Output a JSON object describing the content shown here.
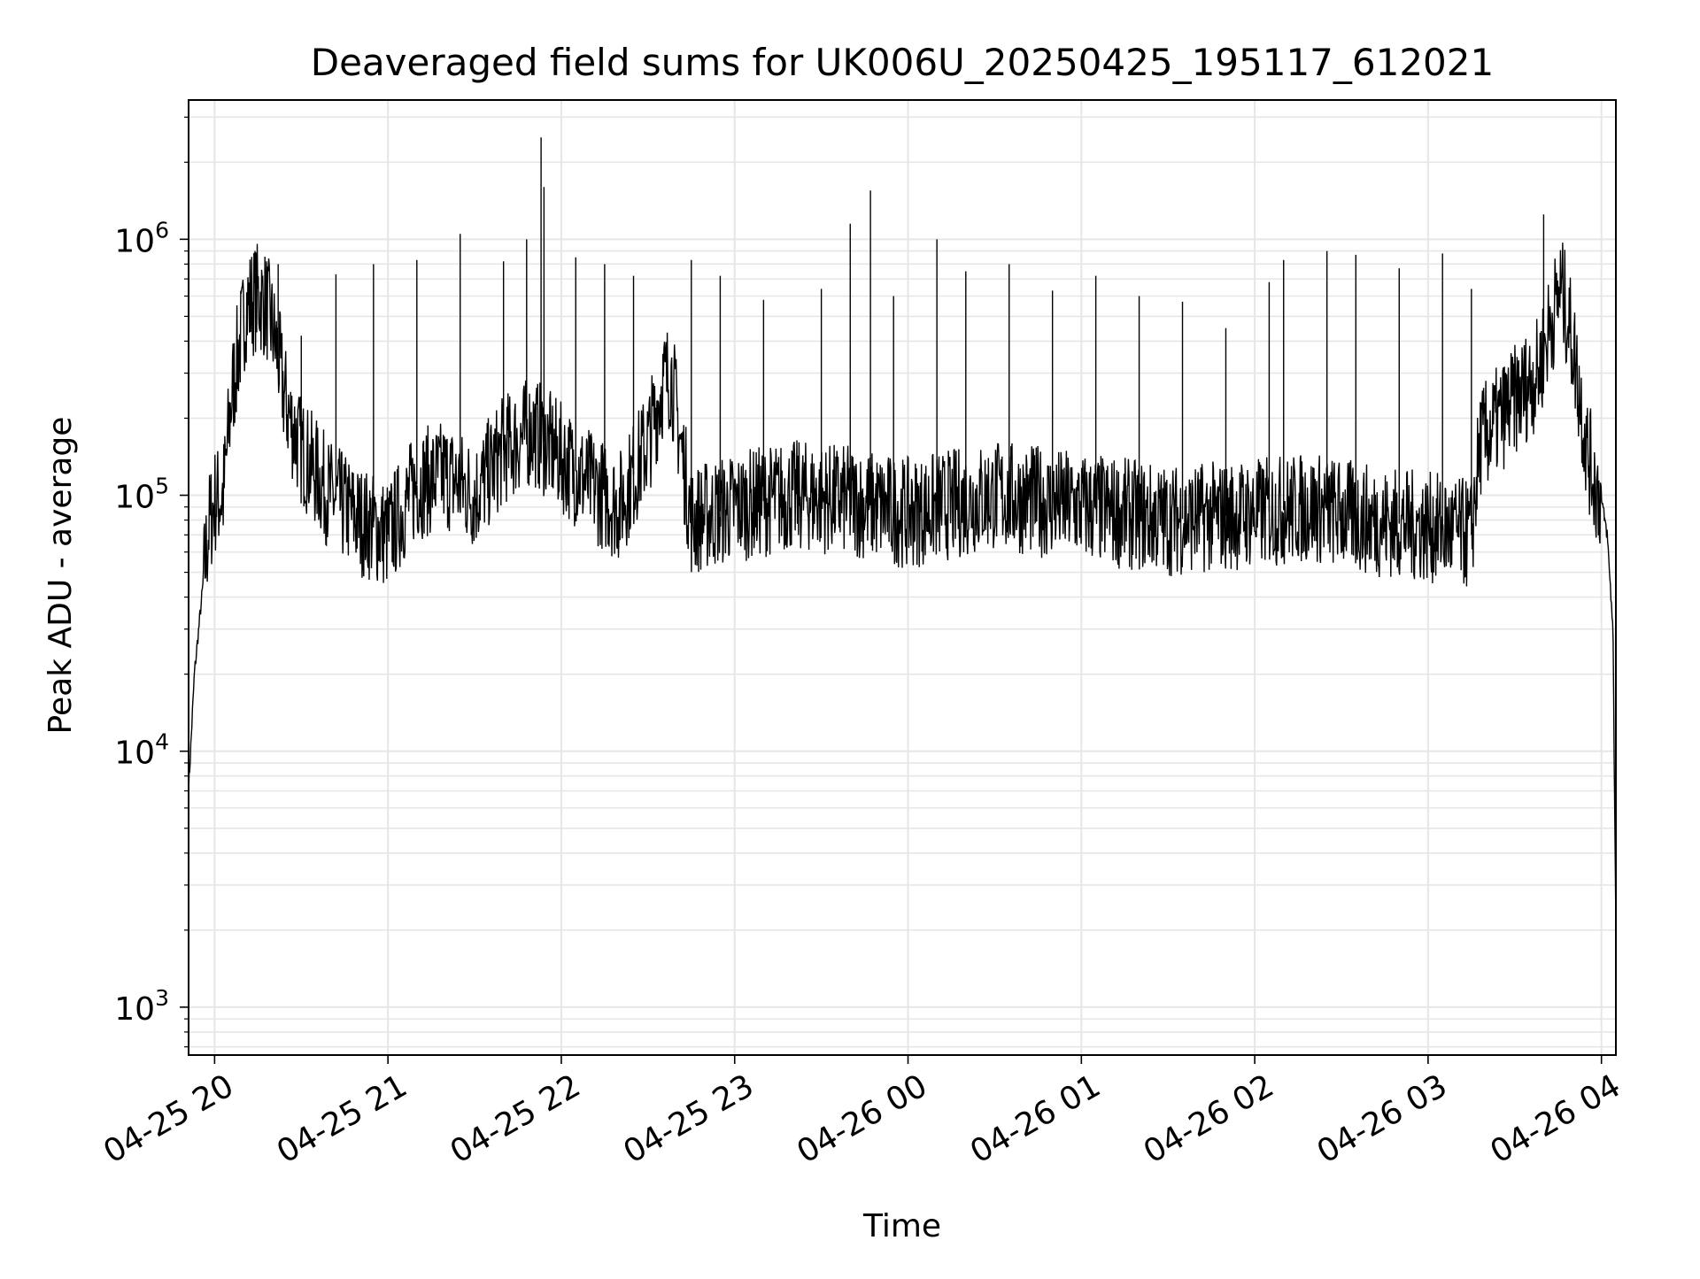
{
  "chart_data": {
    "type": "line",
    "title": "Deaveraged field sums for UK006U_20250425_195117_612021",
    "xlabel": "Time",
    "ylabel": "Peak ADU - average",
    "yscale": "log",
    "ylim": [
      650,
      3500000
    ],
    "xlim": [
      "2025-04-25 19:51",
      "2025-04-26 04:05"
    ],
    "grid": true,
    "legend": "none",
    "line_color": "#000000",
    "grid_color": "#e6e6e6",
    "x_ticks": [
      {
        "t": "2025-04-25 20:00",
        "label": "04-25 20"
      },
      {
        "t": "2025-04-25 21:00",
        "label": "04-25 21"
      },
      {
        "t": "2025-04-25 22:00",
        "label": "04-25 22"
      },
      {
        "t": "2025-04-25 23:00",
        "label": "04-25 23"
      },
      {
        "t": "2025-04-26 00:00",
        "label": "04-26 00"
      },
      {
        "t": "2025-04-26 01:00",
        "label": "04-26 01"
      },
      {
        "t": "2025-04-26 02:00",
        "label": "04-26 02"
      },
      {
        "t": "2025-04-26 03:00",
        "label": "04-26 03"
      },
      {
        "t": "2025-04-26 04:00",
        "label": "04-26 04"
      }
    ],
    "y_ticks": [
      {
        "value": 1000,
        "base": "10",
        "exp": "3"
      },
      {
        "value": 10000,
        "base": "10",
        "exp": "4"
      },
      {
        "value": 100000,
        "base": "10",
        "exp": "5"
      },
      {
        "value": 1000000,
        "base": "10",
        "exp": "6"
      }
    ],
    "series": [
      {
        "x": [
          "2025-04-25 19:51",
          "2025-04-25 19:53",
          "2025-04-25 19:56",
          "2025-04-25 19:58",
          "2025-04-25 20:00",
          "2025-04-25 20:03",
          "2025-04-25 20:06",
          "2025-04-25 20:08",
          "2025-04-25 20:11",
          "2025-04-25 20:15",
          "2025-04-25 20:18",
          "2025-04-25 20:20",
          "2025-04-25 20:22",
          "2025-04-25 20:24",
          "2025-04-25 20:26",
          "2025-04-25 20:30",
          "2025-04-25 20:40",
          "2025-04-25 20:50",
          "2025-04-25 21:00",
          "2025-04-25 21:10",
          "2025-04-25 21:20",
          "2025-04-25 21:30",
          "2025-04-25 21:40",
          "2025-04-25 21:50",
          "2025-04-25 22:00",
          "2025-04-25 22:10",
          "2025-04-25 22:20",
          "2025-04-25 22:30",
          "2025-04-25 22:35",
          "2025-04-25 22:38",
          "2025-04-25 22:45",
          "2025-04-25 23:00",
          "2025-04-25 23:20",
          "2025-04-25 23:40",
          "2025-04-26 00:00",
          "2025-04-26 00:30",
          "2025-04-26 01:00",
          "2025-04-26 01:30",
          "2025-04-26 02:00",
          "2025-04-26 02:20",
          "2025-04-26 02:40",
          "2025-04-26 03:00",
          "2025-04-26 03:15",
          "2025-04-26 03:18",
          "2025-04-26 03:25",
          "2025-04-26 03:32",
          "2025-04-26 03:38",
          "2025-04-26 03:42",
          "2025-04-26 03:46",
          "2025-04-26 03:50",
          "2025-04-26 03:55",
          "2025-04-26 03:58",
          "2025-04-26 04:00",
          "2025-04-26 04:02",
          "2025-04-26 04:04",
          "2025-04-26 04:05"
        ],
        "y": [
          7000,
          20000,
          45000,
          75000,
          95000,
          100000,
          250000,
          350000,
          550000,
          600000,
          550000,
          450000,
          350000,
          250000,
          200000,
          150000,
          100000,
          80000,
          70000,
          110000,
          120000,
          100000,
          150000,
          180000,
          140000,
          110000,
          90000,
          160000,
          270000,
          300000,
          80000,
          90000,
          100000,
          95000,
          85000,
          100000,
          90000,
          80000,
          85000,
          90000,
          80000,
          75000,
          70000,
          160000,
          200000,
          250000,
          300000,
          450000,
          650000,
          400000,
          150000,
          110000,
          95000,
          70000,
          30000,
          2000
        ]
      }
    ],
    "spikes": [
      {
        "x": "2025-04-25 20:15",
        "y": 600000
      },
      {
        "x": "2025-04-25 20:22",
        "y": 800000
      },
      {
        "x": "2025-04-25 20:30",
        "y": 420000
      },
      {
        "x": "2025-04-25 20:42",
        "y": 730000
      },
      {
        "x": "2025-04-25 20:55",
        "y": 800000
      },
      {
        "x": "2025-04-25 21:10",
        "y": 830000
      },
      {
        "x": "2025-04-25 21:25",
        "y": 1050000
      },
      {
        "x": "2025-04-25 21:40",
        "y": 820000
      },
      {
        "x": "2025-04-25 21:48",
        "y": 1000000
      },
      {
        "x": "2025-04-25 21:53",
        "y": 2500000
      },
      {
        "x": "2025-04-25 21:54",
        "y": 1600000
      },
      {
        "x": "2025-04-25 22:05",
        "y": 850000
      },
      {
        "x": "2025-04-25 22:15",
        "y": 800000
      },
      {
        "x": "2025-04-25 22:25",
        "y": 720000
      },
      {
        "x": "2025-04-25 22:45",
        "y": 830000
      },
      {
        "x": "2025-04-25 22:55",
        "y": 720000
      },
      {
        "x": "2025-04-25 23:10",
        "y": 580000
      },
      {
        "x": "2025-04-25 23:30",
        "y": 640000
      },
      {
        "x": "2025-04-25 23:40",
        "y": 1150000
      },
      {
        "x": "2025-04-25 23:47",
        "y": 1550000
      },
      {
        "x": "2025-04-25 23:55",
        "y": 600000
      },
      {
        "x": "2025-04-26 00:10",
        "y": 1000000
      },
      {
        "x": "2025-04-26 00:20",
        "y": 750000
      },
      {
        "x": "2025-04-26 00:35",
        "y": 800000
      },
      {
        "x": "2025-04-26 00:50",
        "y": 630000
      },
      {
        "x": "2025-04-26 01:05",
        "y": 720000
      },
      {
        "x": "2025-04-26 01:20",
        "y": 600000
      },
      {
        "x": "2025-04-26 01:35",
        "y": 570000
      },
      {
        "x": "2025-04-26 01:50",
        "y": 450000
      },
      {
        "x": "2025-04-26 02:05",
        "y": 680000
      },
      {
        "x": "2025-04-26 02:10",
        "y": 830000
      },
      {
        "x": "2025-04-26 02:25",
        "y": 900000
      },
      {
        "x": "2025-04-26 02:35",
        "y": 870000
      },
      {
        "x": "2025-04-26 02:50",
        "y": 770000
      },
      {
        "x": "2025-04-26 03:05",
        "y": 880000
      },
      {
        "x": "2025-04-26 03:15",
        "y": 640000
      },
      {
        "x": "2025-04-26 03:40",
        "y": 1250000
      }
    ]
  }
}
